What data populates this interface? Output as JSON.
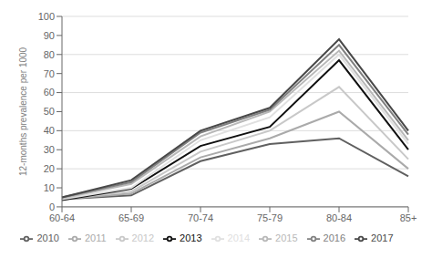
{
  "chart_data": {
    "type": "line",
    "categories": [
      "60-64",
      "65-69",
      "70-74",
      "75-79",
      "80-84",
      "85+"
    ],
    "series": [
      {
        "name": "2010",
        "color": "#606060",
        "values": [
          4.0,
          6.0,
          24.0,
          33.0,
          36.0,
          16.0
        ]
      },
      {
        "name": "2011",
        "color": "#aaaaaa",
        "values": [
          4.0,
          7.0,
          26.0,
          36.0,
          50.0,
          20.0
        ]
      },
      {
        "name": "2012",
        "color": "#c8c8c8",
        "values": [
          4.5,
          8.0,
          29.0,
          40.0,
          63.0,
          25.0
        ]
      },
      {
        "name": "2013",
        "color": "#101010",
        "values": [
          3.5,
          9.5,
          32.0,
          42.0,
          77.0,
          30.0
        ]
      },
      {
        "name": "2014",
        "color": "#e0e0e0",
        "values": [
          4.0,
          10.0,
          35.0,
          47.0,
          80.0,
          33.0
        ]
      },
      {
        "name": "2015",
        "color": "#b8b8b8",
        "values": [
          4.5,
          12.0,
          37.0,
          50.0,
          82.0,
          35.0
        ]
      },
      {
        "name": "2016",
        "color": "#808080",
        "values": [
          5.0,
          13.0,
          39.0,
          51.0,
          85.0,
          38.0
        ]
      },
      {
        "name": "2017",
        "color": "#484848",
        "values": [
          5.0,
          14.0,
          40.0,
          52.0,
          88.0,
          40.0
        ]
      }
    ],
    "ylabel": "12-months prevalence per 1000",
    "ylim": [
      0,
      100
    ],
    "yticks": [
      0,
      10,
      20,
      30,
      40,
      50,
      60,
      70,
      80,
      90,
      100
    ],
    "grid": true,
    "legend": "bottom"
  }
}
